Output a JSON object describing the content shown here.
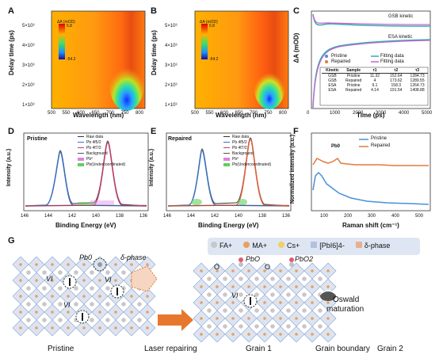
{
  "panels": {
    "A": {
      "label": "A",
      "ylabel": "Delay time (ps)",
      "xlabel": "Wavelength (nm)",
      "xticks": [
        "500",
        "550",
        "600",
        "650",
        "700",
        "750",
        "800"
      ],
      "yticks": [
        "1×10³",
        "2×10³",
        "3×10³",
        "4×10³",
        "5×10³"
      ],
      "colorbar_title": "ΔA (mOD)",
      "colorbar_max": "5.8",
      "colorbar_min": "-54.2"
    },
    "B": {
      "label": "B",
      "ylabel": "Delay time (ps)",
      "xlabel": "Wavelength (nm)",
      "xticks": [
        "500",
        "550",
        "600",
        "650",
        "700",
        "750",
        "800"
      ],
      "yticks": [
        "1×10³",
        "2×10³",
        "3×10³",
        "4×10³",
        "5×10³"
      ],
      "colorbar_title": "ΔA (mOD)",
      "colorbar_max": "5.8",
      "colorbar_min": "-54.2"
    },
    "C": {
      "label": "C",
      "ylabel": "ΔA (mOD)",
      "xlabel": "Time (ps)",
      "xticks": [
        "0",
        "1000",
        "2000",
        "3000",
        "4000",
        "5000"
      ],
      "gsb_label": "GSB kinetic",
      "esa_label": "ESA kinetic",
      "legend": [
        "Pristine",
        "Fitting data",
        "Repaired",
        "Fitting data"
      ],
      "table_headers": [
        "Kinetic",
        "Sample",
        "τ1",
        "τ2",
        "τ3"
      ],
      "table_rows": [
        [
          "GSB",
          "Pristine",
          "11.32",
          "152.64",
          "1284.73"
        ],
        [
          "GSB",
          "Repaired",
          "4",
          "173.62",
          "1289.55"
        ],
        [
          "ESA",
          "Pristine",
          "9.1",
          "158.3",
          "1264.73"
        ],
        [
          "ESA",
          "Repaired",
          "4.14",
          "191.54",
          "1408.88"
        ]
      ]
    },
    "D": {
      "label": "D",
      "tag": "Pristine",
      "xlabel": "Binding Energy (eV)",
      "ylabel": "Intensity (a.u.)",
      "xticks": [
        "146",
        "144",
        "142",
        "140",
        "138",
        "136"
      ],
      "legend": [
        "Raw data",
        "Pb 4f5/2",
        "Pb 4f7/2",
        "Background",
        "Pb⁰",
        "Pb(Undercoordinated)"
      ]
    },
    "E": {
      "label": "E",
      "tag": "Repaired",
      "xlabel": "Binding Energy (eV)",
      "ylabel": "Intensity (a.u.)",
      "xticks": [
        "146",
        "144",
        "142",
        "140",
        "138",
        "136"
      ],
      "legend": [
        "Raw data",
        "Pb 4f5/2",
        "Pb 4f7/2",
        "Background",
        "Pb⁰",
        "Pb(Undercoordinated)"
      ]
    },
    "F": {
      "label": "F",
      "ylabel": "Normalized intensity (a.u.)",
      "xlabel": "Raman shift (cm⁻¹)",
      "xticks": [
        "100",
        "200",
        "300",
        "400",
        "500"
      ],
      "legend": [
        "Pristine",
        "Repaired"
      ],
      "annotation": "Pb0"
    },
    "G": {
      "label": "G",
      "legend": [
        "FA+",
        "MA+",
        "Cs+",
        "[PbI6]4-",
        "δ-phase"
      ],
      "pristine_labels": [
        "Pb0",
        "δ-phase",
        "VI",
        "VI",
        "VI"
      ],
      "repaired_labels": [
        "PbO",
        "PbO2",
        "O",
        "O",
        "VI"
      ],
      "oswald": [
        "Oswald",
        "maturation"
      ],
      "captions": [
        "Pristine",
        "Laser repairing",
        "Grain 1",
        "Grain boundary",
        "Grain 2"
      ]
    }
  },
  "colors": {
    "pristine": "#4a90d9",
    "repaired": "#e07a3c",
    "fit_pristine": "#2ab0b0",
    "fit_repaired": "#d060d0",
    "pb52": "#3a6fc0",
    "pb72": "#c0406a",
    "arrow": "#e8772e"
  }
}
